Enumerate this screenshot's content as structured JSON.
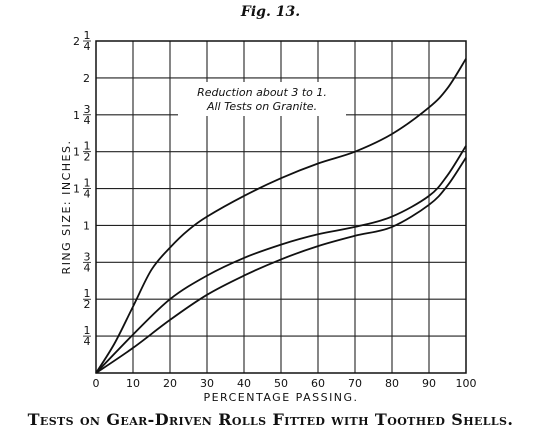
{
  "figure": {
    "title": "Fig. 13.",
    "caption": "Tests on Gear-Driven Rolls Fitted with Toothed Shells."
  },
  "chart_data": {
    "type": "line",
    "title": "",
    "xlabel": "PERCENTAGE PASSING.",
    "ylabel": "RING SIZE: INCHES.",
    "xlim": [
      0,
      100
    ],
    "ylim": [
      0,
      2.25
    ],
    "x_ticks": [
      {
        "value": 0,
        "label": "0"
      },
      {
        "value": 10,
        "label": "10"
      },
      {
        "value": 20,
        "label": "20"
      },
      {
        "value": 30,
        "label": "30"
      },
      {
        "value": 40,
        "label": "40"
      },
      {
        "value": 50,
        "label": "50"
      },
      {
        "value": 60,
        "label": "60"
      },
      {
        "value": 70,
        "label": "70"
      },
      {
        "value": 80,
        "label": "80"
      },
      {
        "value": 90,
        "label": "90"
      },
      {
        "value": 100,
        "label": "100"
      }
    ],
    "y_ticks": [
      {
        "value": 0.25,
        "whole": "",
        "num": "1",
        "den": "4"
      },
      {
        "value": 0.5,
        "whole": "",
        "num": "1",
        "den": "2"
      },
      {
        "value": 0.75,
        "whole": "",
        "num": "3",
        "den": "4"
      },
      {
        "value": 1.0,
        "whole": "1",
        "num": "",
        "den": ""
      },
      {
        "value": 1.25,
        "whole": "1",
        "num": "1",
        "den": "4"
      },
      {
        "value": 1.5,
        "whole": "1",
        "num": "1",
        "den": "2"
      },
      {
        "value": 1.75,
        "whole": "1",
        "num": "3",
        "den": "4"
      },
      {
        "value": 2.0,
        "whole": "2",
        "num": "",
        "den": ""
      },
      {
        "value": 2.25,
        "whole": "2",
        "num": "1",
        "den": "4"
      }
    ],
    "grid": true,
    "annotation": [
      "Reduction about 3 to 1.",
      "All Tests on Granite."
    ],
    "series": [
      {
        "x": [
          0,
          5,
          10,
          15,
          20,
          25,
          30,
          40,
          50,
          60,
          70,
          80,
          90,
          95,
          100
        ],
        "values": [
          0,
          0.2,
          0.45,
          0.7,
          0.85,
          0.97,
          1.06,
          1.2,
          1.32,
          1.42,
          1.5,
          1.62,
          1.8,
          1.93,
          2.13
        ]
      },
      {
        "x": [
          0,
          10,
          20,
          30,
          40,
          50,
          60,
          70,
          80,
          90,
          95,
          100
        ],
        "values": [
          0,
          0.26,
          0.5,
          0.66,
          0.78,
          0.87,
          0.94,
          0.99,
          1.06,
          1.2,
          1.34,
          1.54
        ]
      },
      {
        "x": [
          0,
          10,
          20,
          30,
          40,
          50,
          60,
          70,
          80,
          90,
          95,
          100
        ],
        "values": [
          0,
          0.17,
          0.36,
          0.53,
          0.66,
          0.77,
          0.86,
          0.93,
          0.99,
          1.14,
          1.27,
          1.46
        ]
      }
    ]
  }
}
